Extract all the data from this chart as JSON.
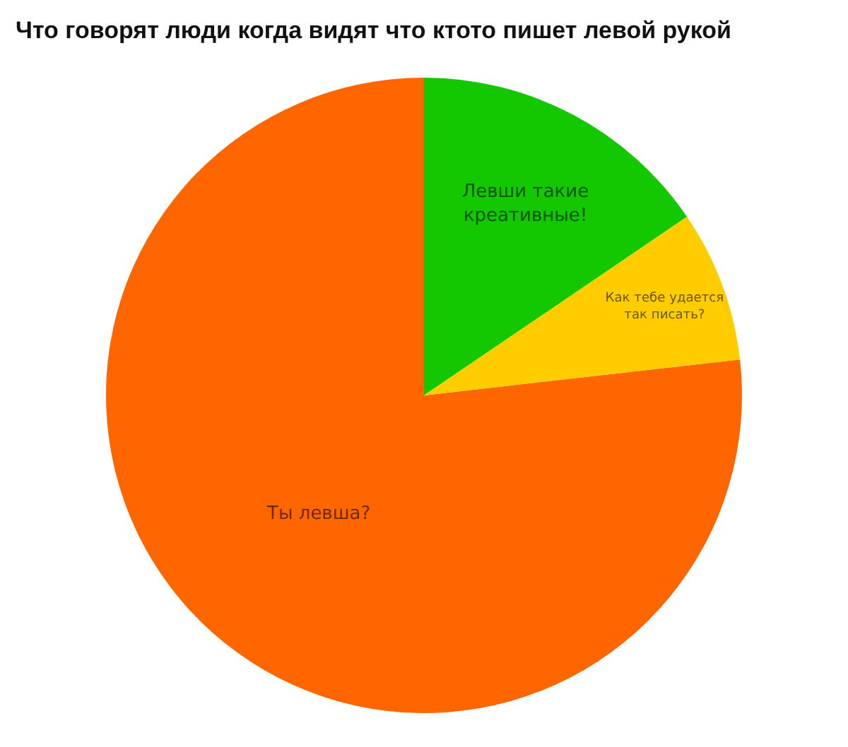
{
  "chart_data": {
    "type": "pie",
    "title": "Что говорят люди когда видят что ктото пишет левой рукой",
    "categories": [
      "Левши такие креативные!",
      "Ты левша?",
      "Как тебе удается так писать?"
    ],
    "values": [
      15.5,
      76.8,
      7.7
    ],
    "colors": [
      "#14c800",
      "#ff6600",
      "#ffcc00"
    ]
  }
}
